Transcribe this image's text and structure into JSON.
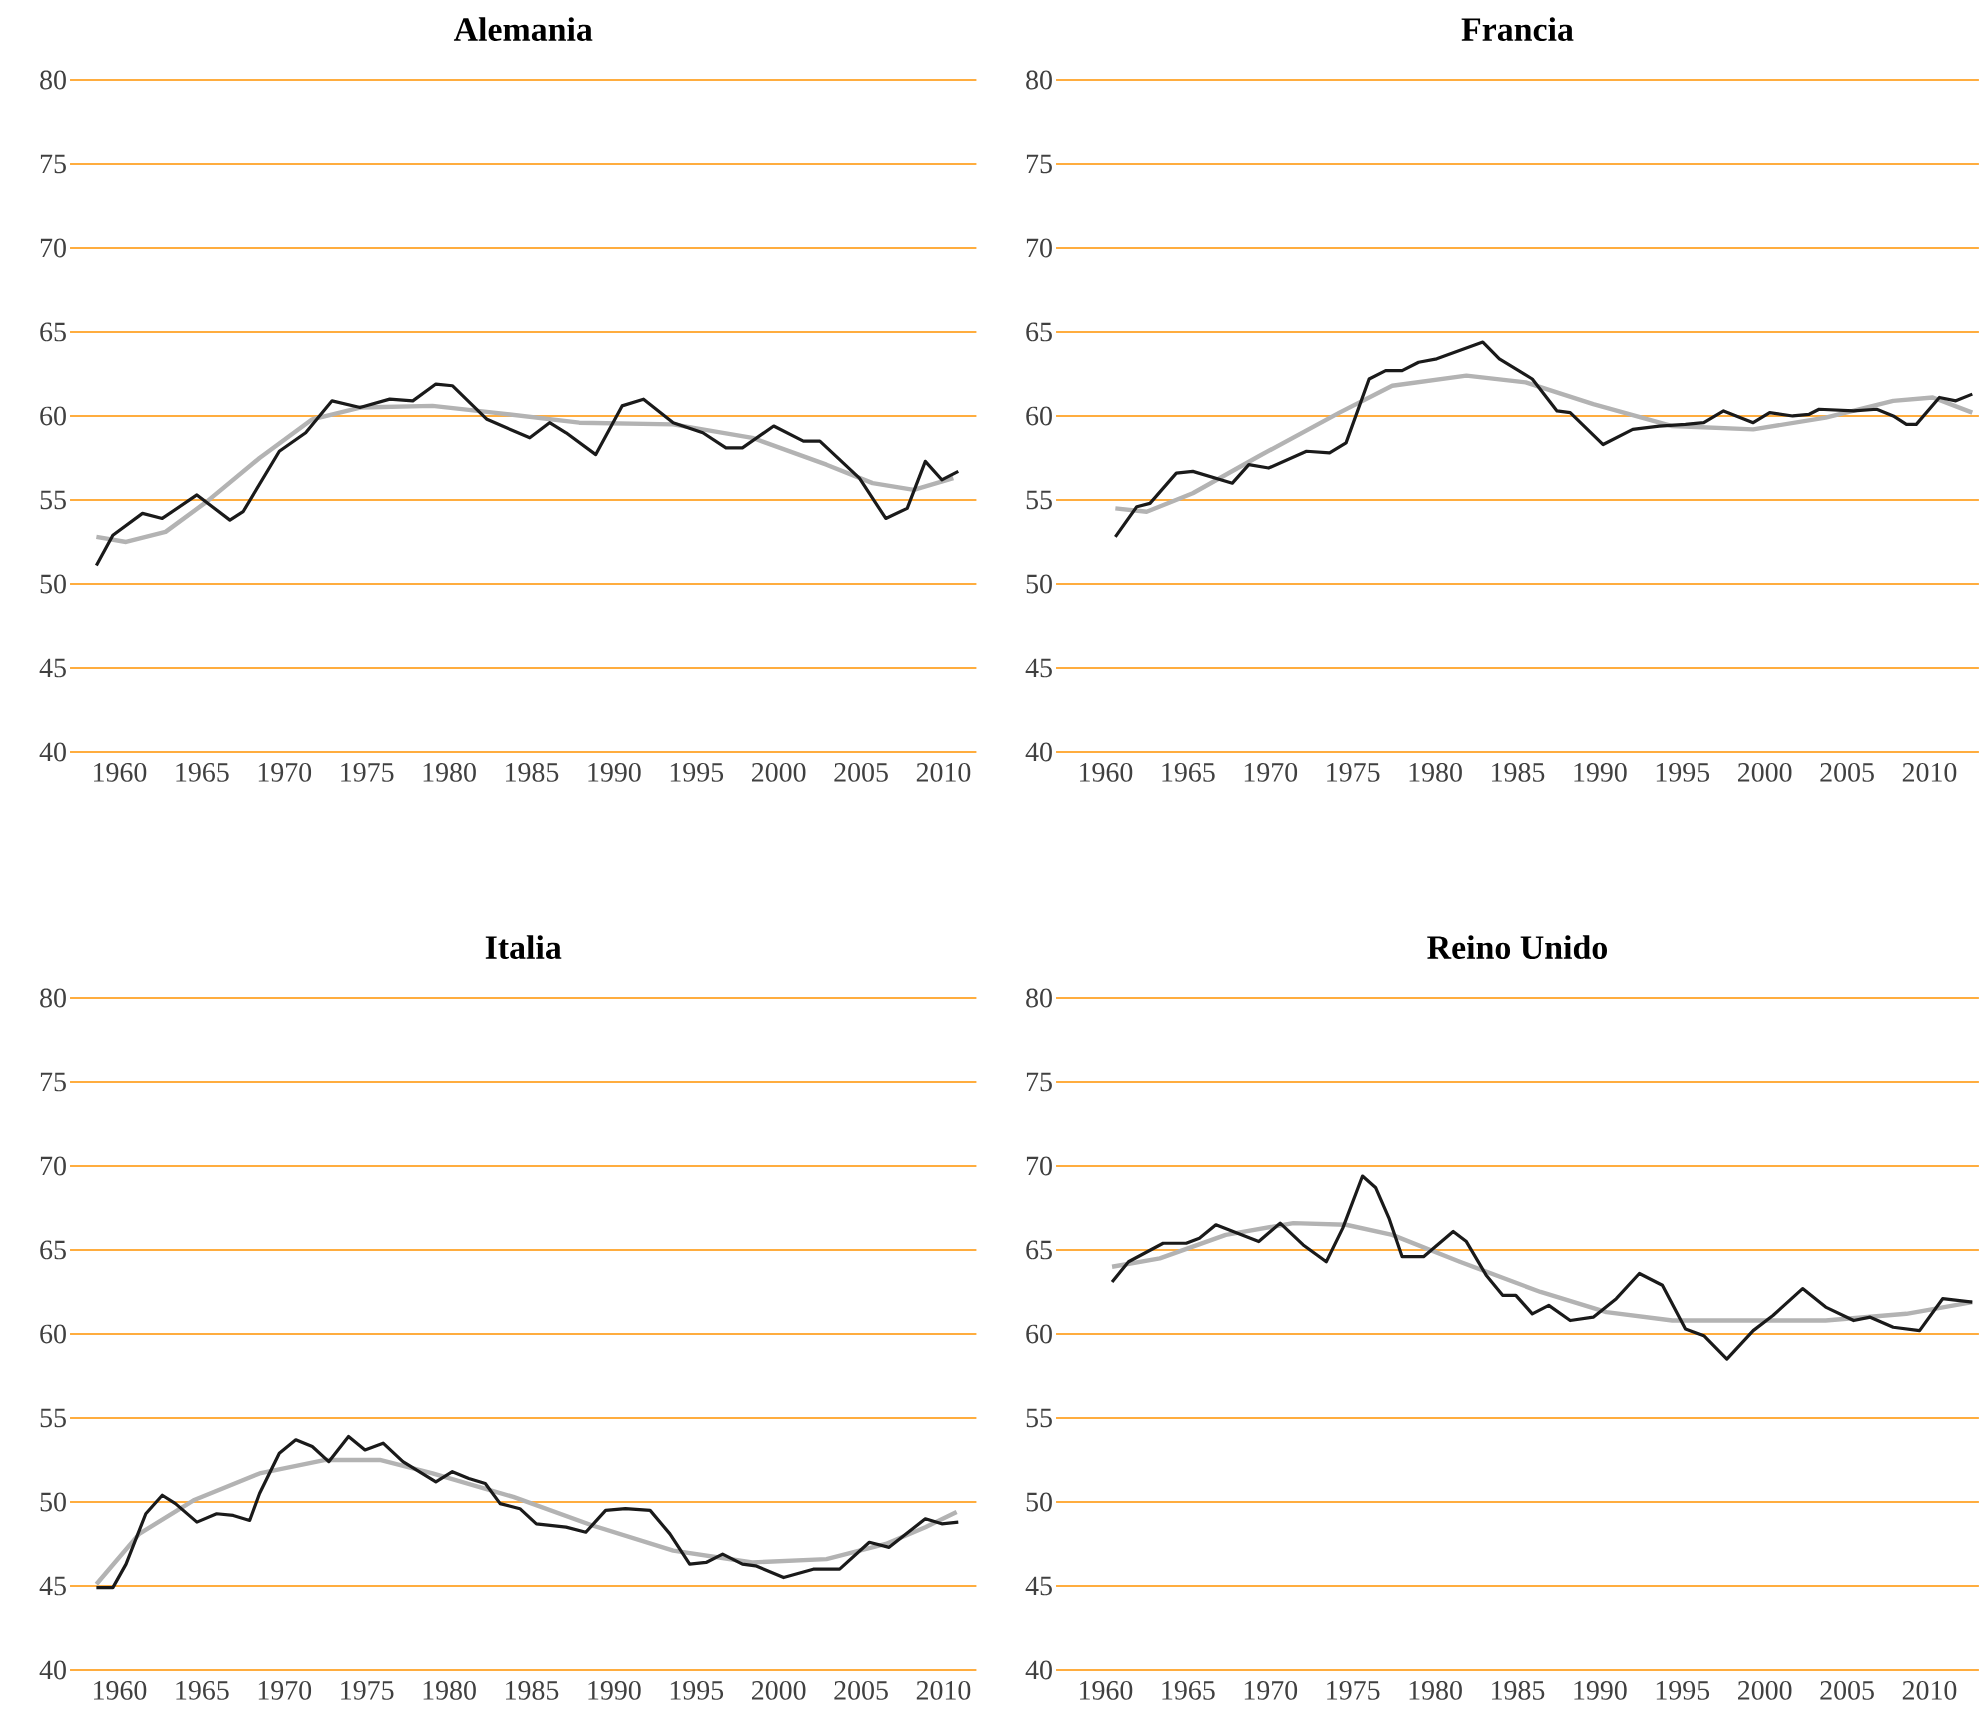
{
  "chart_data": [
    {
      "type": "line",
      "title": "Alemania",
      "xlim": [
        1957,
        2012
      ],
      "xticks": [
        1960,
        1965,
        1970,
        1975,
        1980,
        1985,
        1990,
        1995,
        2000,
        2005,
        2010
      ],
      "ylim": [
        40,
        80
      ],
      "yticks": [
        40,
        45,
        50,
        55,
        60,
        65,
        70,
        75,
        80
      ],
      "grid": "y",
      "series": [
        {
          "color": "#b3b3b3",
          "x": [
            1958.6,
            1960.4,
            1962.8,
            1965.3,
            1968.5,
            1971.7,
            1974.6,
            1979.0,
            1982.7,
            1987.9,
            1993.6,
            1998.4,
            2002.9,
            2005.7,
            2008.2,
            2010.6
          ],
          "values": [
            52.8,
            52.5,
            53.1,
            54.9,
            57.5,
            59.8,
            60.5,
            60.6,
            60.2,
            59.6,
            59.5,
            58.7,
            57.1,
            56.0,
            55.6,
            56.3
          ]
        },
        {
          "color": "#1a1a1a",
          "x": [
            1958.6,
            1959.6,
            1961.4,
            1962.6,
            1964.7,
            1966.7,
            1967.5,
            1969.7,
            1971.3,
            1972.9,
            1974.6,
            1976.4,
            1977.8,
            1979.2,
            1980.2,
            1982.3,
            1984.9,
            1986.1,
            1987.1,
            1988.9,
            1990.5,
            1991.8,
            1993.6,
            1995.4,
            1996.8,
            1997.8,
            1999.7,
            2001.5,
            2002.5,
            2004.9,
            2006.5,
            2007.8,
            2008.9,
            2009.9,
            2010.9
          ],
          "values": [
            51.1,
            52.9,
            54.2,
            53.9,
            55.3,
            53.8,
            54.3,
            57.9,
            59.0,
            60.9,
            60.5,
            61.0,
            60.9,
            61.9,
            61.8,
            59.8,
            58.7,
            59.6,
            59.0,
            57.7,
            60.6,
            61.0,
            59.6,
            59.0,
            58.1,
            58.1,
            59.4,
            58.5,
            58.5,
            56.3,
            53.9,
            54.5,
            57.3,
            56.2,
            56.7
          ]
        }
      ]
    },
    {
      "type": "line",
      "title": "Francia",
      "xlim": [
        1957,
        2013
      ],
      "xticks": [
        1960,
        1965,
        1970,
        1975,
        1980,
        1985,
        1990,
        1995,
        2000,
        2005,
        2010
      ],
      "ylim": [
        40,
        80
      ],
      "yticks": [
        40,
        45,
        50,
        55,
        60,
        65,
        70,
        75,
        80
      ],
      "grid": "y",
      "series": [
        {
          "color": "#b3b3b3",
          "x": [
            1960.6,
            1962.5,
            1965.3,
            1969.3,
            1974.2,
            1977.4,
            1981.9,
            1985.5,
            1989.6,
            1994.4,
            1999.3,
            2003.7,
            2007.8,
            2010.2,
            2012.6
          ],
          "values": [
            54.5,
            54.3,
            55.4,
            57.6,
            60.2,
            61.8,
            62.4,
            62.0,
            60.7,
            59.4,
            59.2,
            59.9,
            60.9,
            61.1,
            60.2
          ]
        },
        {
          "color": "#1a1a1a",
          "x": [
            1960.6,
            1961.9,
            1962.7,
            1964.3,
            1965.3,
            1967.7,
            1968.7,
            1969.9,
            1972.2,
            1973.6,
            1974.6,
            1976.0,
            1977.0,
            1978.0,
            1979.0,
            1980.1,
            1982.9,
            1983.9,
            1985.9,
            1987.4,
            1988.2,
            1990.2,
            1992.0,
            1993.6,
            1995.2,
            1996.3,
            1997.5,
            1999.3,
            2000.3,
            2001.7,
            2002.7,
            2003.3,
            2005.4,
            2006.8,
            2007.8,
            2008.6,
            2009.2,
            2010.6,
            2011.6,
            2012.6
          ],
          "values": [
            52.8,
            54.6,
            54.8,
            56.6,
            56.7,
            56.0,
            57.1,
            56.9,
            57.9,
            57.8,
            58.4,
            62.2,
            62.7,
            62.7,
            63.2,
            63.4,
            64.4,
            63.4,
            62.2,
            60.3,
            60.2,
            58.3,
            59.2,
            59.4,
            59.5,
            59.6,
            60.3,
            59.6,
            60.2,
            60.0,
            60.1,
            60.4,
            60.3,
            60.4,
            60.0,
            59.5,
            59.5,
            61.1,
            60.9,
            61.3
          ]
        }
      ]
    },
    {
      "type": "line",
      "title": "Italia",
      "xlim": [
        1957,
        2012
      ],
      "xticks": [
        1960,
        1965,
        1970,
        1975,
        1980,
        1985,
        1990,
        1995,
        2000,
        2005,
        2010
      ],
      "ylim": [
        40,
        80
      ],
      "yticks": [
        40,
        45,
        50,
        55,
        60,
        65,
        70,
        75,
        80
      ],
      "grid": "y",
      "series": [
        {
          "color": "#b3b3b3",
          "x": [
            1958.6,
            1961.2,
            1964.5,
            1968.5,
            1972.5,
            1975.8,
            1979.0,
            1983.9,
            1988.7,
            1993.6,
            1998.4,
            2002.9,
            2006.5,
            2008.9,
            2010.8
          ],
          "values": [
            45.1,
            48.1,
            50.1,
            51.7,
            52.5,
            52.5,
            51.7,
            50.3,
            48.6,
            47.1,
            46.4,
            46.6,
            47.5,
            48.5,
            49.4
          ]
        },
        {
          "color": "#1a1a1a",
          "x": [
            1958.6,
            1959.6,
            1960.4,
            1961.6,
            1962.6,
            1963.4,
            1964.7,
            1965.9,
            1966.9,
            1967.9,
            1968.5,
            1969.7,
            1970.7,
            1971.7,
            1972.7,
            1973.9,
            1974.9,
            1976.0,
            1977.2,
            1979.2,
            1980.2,
            1981.2,
            1982.2,
            1983.1,
            1984.3,
            1985.3,
            1987.1,
            1988.3,
            1989.5,
            1990.7,
            1992.2,
            1993.4,
            1994.6,
            1995.6,
            1996.6,
            1997.8,
            1998.6,
            2000.3,
            2002.1,
            2003.7,
            2005.5,
            2006.7,
            2008.9,
            2009.9,
            2010.9
          ],
          "values": [
            44.9,
            44.9,
            46.3,
            49.3,
            50.4,
            49.9,
            48.8,
            49.3,
            49.2,
            48.9,
            50.5,
            52.9,
            53.7,
            53.3,
            52.4,
            53.9,
            53.1,
            53.5,
            52.4,
            51.2,
            51.8,
            51.4,
            51.1,
            49.9,
            49.6,
            48.7,
            48.5,
            48.2,
            49.5,
            49.6,
            49.5,
            48.1,
            46.3,
            46.4,
            46.9,
            46.3,
            46.2,
            45.5,
            46.0,
            46.0,
            47.6,
            47.3,
            49.0,
            48.7,
            48.8
          ]
        }
      ]
    },
    {
      "type": "line",
      "title": "Reino Unido",
      "xlim": [
        1957,
        2013
      ],
      "xticks": [
        1960,
        1965,
        1970,
        1975,
        1980,
        1985,
        1990,
        1995,
        2000,
        2005,
        2010
      ],
      "ylim": [
        40,
        80
      ],
      "yticks": [
        40,
        45,
        50,
        55,
        60,
        65,
        70,
        75,
        80
      ],
      "grid": "y",
      "series": [
        {
          "color": "#b3b3b3",
          "x": [
            1960.4,
            1963.3,
            1967.3,
            1971.4,
            1974.6,
            1977.4,
            1981.5,
            1986.4,
            1990.4,
            1994.4,
            1999.3,
            2003.7,
            2008.6,
            2012.6
          ],
          "values": [
            64.0,
            64.5,
            65.9,
            66.6,
            66.5,
            65.9,
            64.3,
            62.5,
            61.3,
            60.8,
            60.8,
            60.8,
            61.2,
            61.9
          ]
        },
        {
          "color": "#1a1a1a",
          "x": [
            1960.4,
            1961.4,
            1963.5,
            1964.9,
            1965.7,
            1966.7,
            1969.3,
            1970.6,
            1972.0,
            1973.4,
            1974.4,
            1975.6,
            1976.4,
            1977.2,
            1978.0,
            1979.3,
            1981.1,
            1981.9,
            1983.1,
            1984.1,
            1984.9,
            1985.9,
            1986.9,
            1988.2,
            1989.6,
            1991.0,
            1992.4,
            1993.8,
            1995.2,
            1996.3,
            1997.7,
            1999.3,
            2000.5,
            2002.3,
            2003.7,
            2005.4,
            2006.4,
            2007.8,
            2009.4,
            2010.8,
            2012.6
          ],
          "values": [
            63.1,
            64.3,
            65.4,
            65.4,
            65.7,
            66.5,
            65.5,
            66.6,
            65.3,
            64.3,
            66.3,
            69.4,
            68.7,
            66.9,
            64.6,
            64.6,
            66.1,
            65.5,
            63.5,
            62.3,
            62.3,
            61.2,
            61.7,
            60.8,
            61.0,
            62.1,
            63.6,
            62.9,
            60.3,
            59.9,
            58.5,
            60.2,
            61.1,
            62.7,
            61.6,
            60.8,
            61.0,
            60.4,
            60.2,
            62.1,
            61.9
          ]
        }
      ]
    }
  ]
}
